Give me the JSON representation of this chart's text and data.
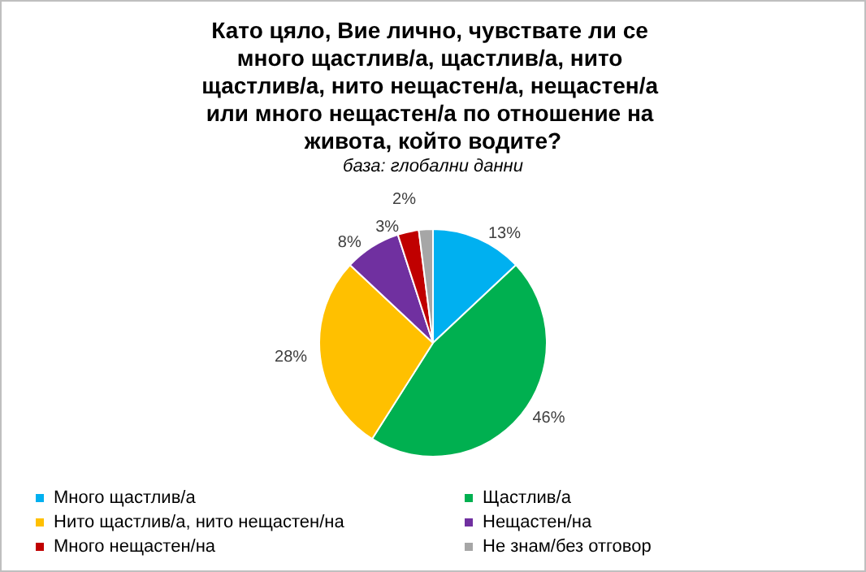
{
  "chart_data": {
    "type": "pie",
    "title": "Като цяло, Вие лично, чувствате ли се много щастлив/а, щастлив/а, нито щастлив/а, нито нещастен/а, нещастен/а или много нещастен/а по отношение на живота, който водите?",
    "subtitle": "база: глобални данни",
    "categories": [
      "Много щастлив/а",
      "Щастлив/а",
      "Нито щастлив/а, нито нещастен/на",
      "Нещастен/на",
      "Много нещастен/на",
      "Не знам/без отговор"
    ],
    "values": [
      13,
      46,
      28,
      8,
      3,
      2
    ],
    "colors": [
      "#00b0f0",
      "#00b050",
      "#ffc000",
      "#7030a0",
      "#c00000",
      "#a6a6a6"
    ],
    "value_labels": [
      "13%",
      "46%",
      "28%",
      "8%",
      "3%",
      "2%"
    ],
    "legend": "bottom"
  }
}
